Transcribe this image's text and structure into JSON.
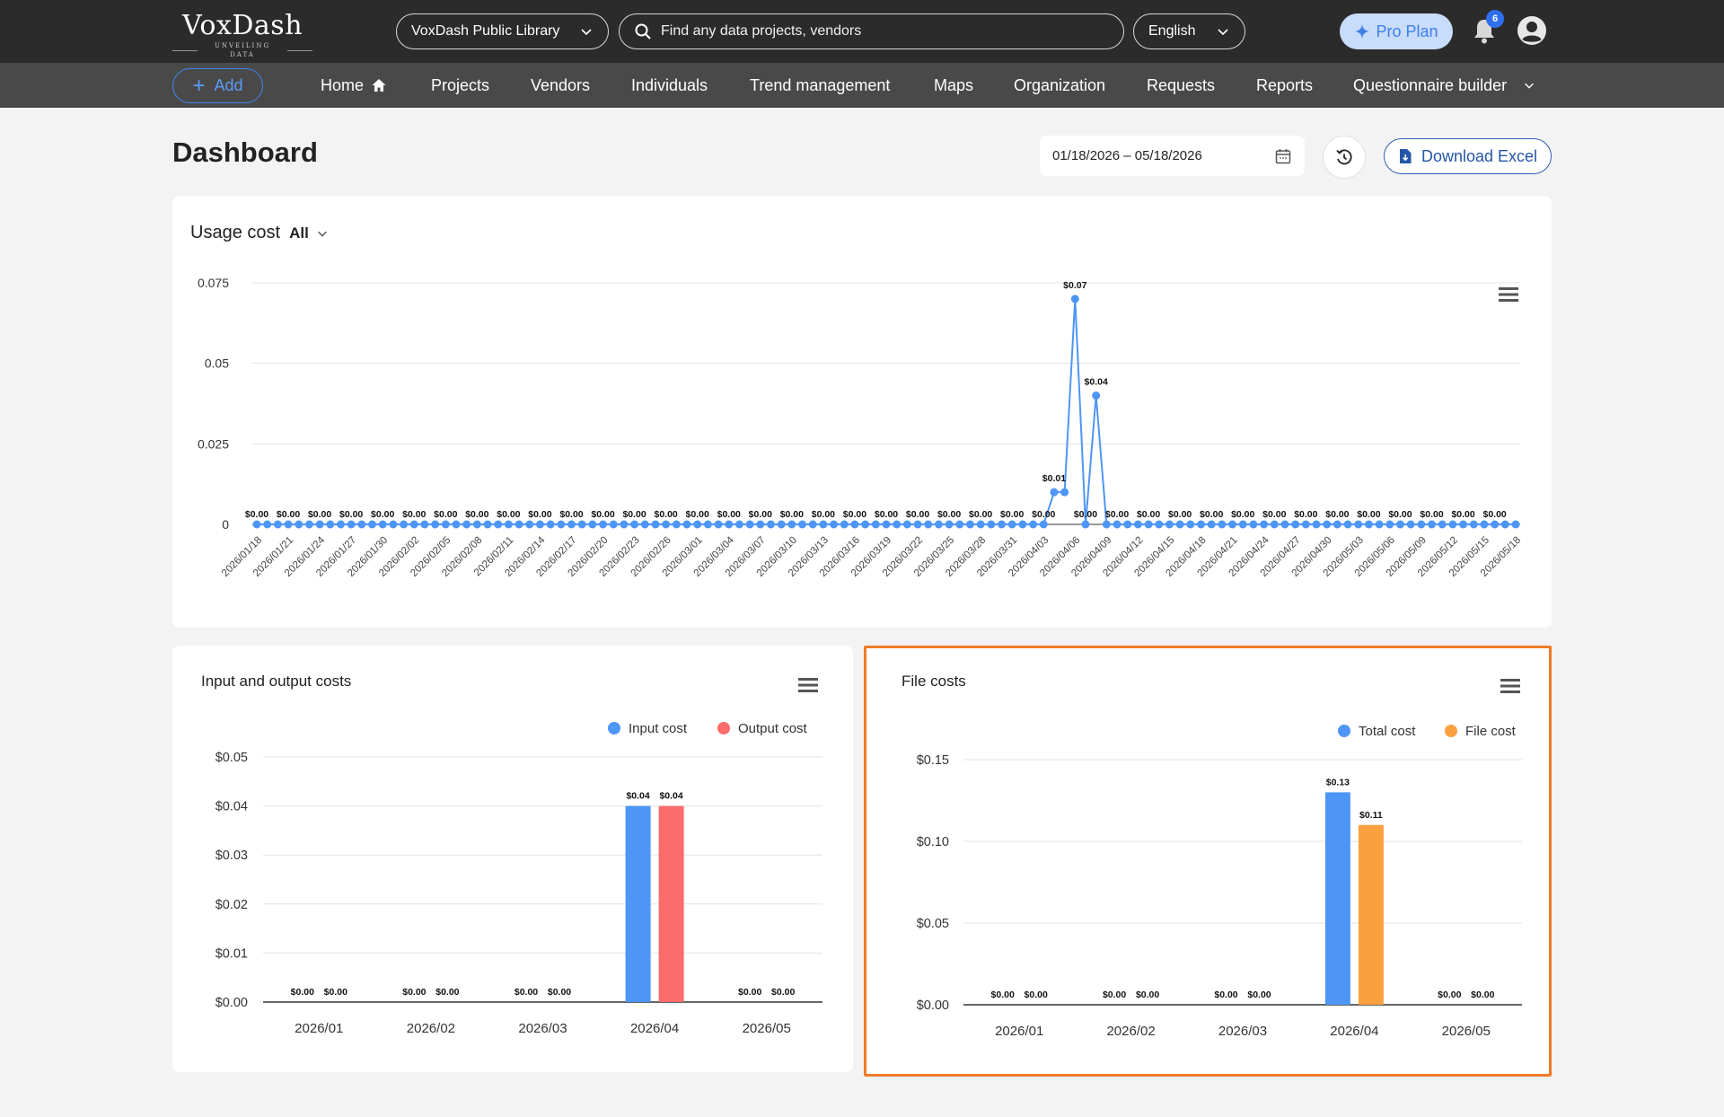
{
  "brand": {
    "name": "VoxDash",
    "tagline": "UNVEILING DATA"
  },
  "header": {
    "library": "VoxDash Public Library",
    "search_placeholder": "Find any data projects, vendors",
    "language": "English",
    "pro_plan": "Pro Plan",
    "notifications_count": "6"
  },
  "nav": {
    "add": "Add",
    "items": [
      "Home",
      "Projects",
      "Vendors",
      "Individuals",
      "Trend management",
      "Maps",
      "Organization",
      "Requests",
      "Reports",
      "Questionnaire builder"
    ]
  },
  "page": {
    "title": "Dashboard",
    "date_range": "01/18/2026 – 05/18/2026",
    "download": "Download Excel"
  },
  "usage_card": {
    "title": "Usage cost",
    "filter": "All"
  },
  "io_card": {
    "title": "Input and output costs"
  },
  "file_card": {
    "title": "File costs"
  },
  "colors": {
    "blue": "#4e96f5",
    "red": "#fb6c6c",
    "orange": "#fba03f",
    "highlight": "#f07b28"
  },
  "chart_data": [
    {
      "type": "line",
      "title": "Usage cost",
      "x": [
        "2026/01/18",
        "2026/01/19",
        "2026/01/20",
        "2026/01/21",
        "2026/01/22",
        "2026/01/23",
        "2026/01/24",
        "2026/01/25",
        "2026/01/26",
        "2026/01/27",
        "2026/01/28",
        "2026/01/29",
        "2026/01/30",
        "2026/01/31",
        "2026/02/01",
        "2026/02/02",
        "2026/02/03",
        "2026/02/04",
        "2026/02/05",
        "2026/02/06",
        "2026/02/07",
        "2026/02/08",
        "2026/02/09",
        "2026/02/10",
        "2026/02/11",
        "2026/02/12",
        "2026/02/13",
        "2026/02/14",
        "2026/02/15",
        "2026/02/16",
        "2026/02/17",
        "2026/02/18",
        "2026/02/19",
        "2026/02/20",
        "2026/02/21",
        "2026/02/22",
        "2026/02/23",
        "2026/02/24",
        "2026/02/25",
        "2026/02/26",
        "2026/02/27",
        "2026/02/28",
        "2026/03/01",
        "2026/03/02",
        "2026/03/03",
        "2026/03/04",
        "2026/03/05",
        "2026/03/06",
        "2026/03/07",
        "2026/03/08",
        "2026/03/09",
        "2026/03/10",
        "2026/03/11",
        "2026/03/12",
        "2026/03/13",
        "2026/03/14",
        "2026/03/15",
        "2026/03/16",
        "2026/03/17",
        "2026/03/18",
        "2026/03/19",
        "2026/03/20",
        "2026/03/21",
        "2026/03/22",
        "2026/03/23",
        "2026/03/24",
        "2026/03/25",
        "2026/03/26",
        "2026/03/27",
        "2026/03/28",
        "2026/03/29",
        "2026/03/30",
        "2026/03/31",
        "2026/04/01",
        "2026/04/02",
        "2026/04/03",
        "2026/04/04",
        "2026/04/05",
        "2026/04/06",
        "2026/04/07",
        "2026/04/08",
        "2026/04/09",
        "2026/04/10",
        "2026/04/11",
        "2026/04/12",
        "2026/04/13",
        "2026/04/14",
        "2026/04/15",
        "2026/04/16",
        "2026/04/17",
        "2026/04/18",
        "2026/04/19",
        "2026/04/20",
        "2026/04/21",
        "2026/04/22",
        "2026/04/23",
        "2026/04/24",
        "2026/04/25",
        "2026/04/26",
        "2026/04/27",
        "2026/04/28",
        "2026/04/29",
        "2026/04/30",
        "2026/05/01",
        "2026/05/02",
        "2026/05/03",
        "2026/05/04",
        "2026/05/05",
        "2026/05/06",
        "2026/05/07",
        "2026/05/08",
        "2026/05/09",
        "2026/05/10",
        "2026/05/11",
        "2026/05/12",
        "2026/05/13",
        "2026/05/14",
        "2026/05/15",
        "2026/05/16",
        "2026/05/17",
        "2026/05/18"
      ],
      "tick_labels": [
        "2026/01/18",
        "2026/01/21",
        "2026/01/24",
        "2026/01/27",
        "2026/01/30",
        "2026/02/02",
        "2026/02/05",
        "2026/02/08",
        "2026/02/11",
        "2026/02/14",
        "2026/02/17",
        "2026/02/20",
        "2026/02/23",
        "2026/02/26",
        "2026/03/01",
        "2026/03/04",
        "2026/03/07",
        "2026/03/10",
        "2026/03/13",
        "2026/03/16",
        "2026/03/19",
        "2026/03/22",
        "2026/03/25",
        "2026/03/28",
        "2026/03/31",
        "2026/04/03",
        "2026/04/06",
        "2026/04/09",
        "2026/04/12",
        "2026/04/15",
        "2026/04/18",
        "2026/04/21",
        "2026/04/24",
        "2026/04/27",
        "2026/04/30",
        "2026/05/03",
        "2026/05/06",
        "2026/05/09",
        "2026/05/12",
        "2026/05/15",
        "2026/05/18"
      ],
      "y_ticks": [
        "0",
        "0.025",
        "0.05",
        "0.075"
      ],
      "ylim": [
        0,
        0.075
      ],
      "nonzero": {
        "2026/04/04": 0.01,
        "2026/04/05": 0.01,
        "2026/04/06": 0.07,
        "2026/04/07": 0,
        "2026/04/08": 0.04
      },
      "point_labels": [
        {
          "x": "2026/01/18",
          "text": "$0.00"
        },
        {
          "x": "2026/01/21",
          "text": "$0.00"
        },
        {
          "x": "2026/01/24",
          "text": "$0.00"
        },
        {
          "x": "2026/01/27",
          "text": "$0.00"
        },
        {
          "x": "2026/01/30",
          "text": "$0.00"
        },
        {
          "x": "2026/02/02",
          "text": "$0.00"
        },
        {
          "x": "2026/02/05",
          "text": "$0.00"
        },
        {
          "x": "2026/02/08",
          "text": "$0.00"
        },
        {
          "x": "2026/02/11",
          "text": "$0.00"
        },
        {
          "x": "2026/02/14",
          "text": "$0.00"
        },
        {
          "x": "2026/02/17",
          "text": "$0.00"
        },
        {
          "x": "2026/02/20",
          "text": "$0.00"
        },
        {
          "x": "2026/02/23",
          "text": "$0.00"
        },
        {
          "x": "2026/02/26",
          "text": "$0.00"
        },
        {
          "x": "2026/03/01",
          "text": "$0.00"
        },
        {
          "x": "2026/03/04",
          "text": "$0.00"
        },
        {
          "x": "2026/03/07",
          "text": "$0.00"
        },
        {
          "x": "2026/03/10",
          "text": "$0.00"
        },
        {
          "x": "2026/03/13",
          "text": "$0.00"
        },
        {
          "x": "2026/03/16",
          "text": "$0.00"
        },
        {
          "x": "2026/03/19",
          "text": "$0.00"
        },
        {
          "x": "2026/03/22",
          "text": "$0.00"
        },
        {
          "x": "2026/03/25",
          "text": "$0.00"
        },
        {
          "x": "2026/03/28",
          "text": "$0.00"
        },
        {
          "x": "2026/03/31",
          "text": "$0.00"
        },
        {
          "x": "2026/04/03",
          "text": "$0.00"
        },
        {
          "x": "2026/04/04",
          "text": "$0.01"
        },
        {
          "x": "2026/04/06",
          "text": "$0.07"
        },
        {
          "x": "2026/04/07",
          "text": "$0.00"
        },
        {
          "x": "2026/04/08",
          "text": "$0.04"
        },
        {
          "x": "2026/04/10",
          "text": "$0.00"
        },
        {
          "x": "2026/04/13",
          "text": "$0.00"
        },
        {
          "x": "2026/04/16",
          "text": "$0.00"
        },
        {
          "x": "2026/04/19",
          "text": "$0.00"
        },
        {
          "x": "2026/04/22",
          "text": "$0.00"
        },
        {
          "x": "2026/04/25",
          "text": "$0.00"
        },
        {
          "x": "2026/04/28",
          "text": "$0.00"
        },
        {
          "x": "2026/05/01",
          "text": "$0.00"
        },
        {
          "x": "2026/05/04",
          "text": "$0.00"
        },
        {
          "x": "2026/05/07",
          "text": "$0.00"
        },
        {
          "x": "2026/05/10",
          "text": "$0.00"
        },
        {
          "x": "2026/05/13",
          "text": "$0.00"
        },
        {
          "x": "2026/05/16",
          "text": "$0.00"
        }
      ],
      "grid": true
    },
    {
      "type": "bar",
      "title": "Input and output costs",
      "categories": [
        "2026/01",
        "2026/02",
        "2026/03",
        "2026/04",
        "2026/05"
      ],
      "series": [
        {
          "name": "Input cost",
          "values": [
            0,
            0,
            0,
            0.04,
            0
          ],
          "labels": [
            "$0.00",
            "$0.00",
            "$0.00",
            "$0.04",
            "$0.00"
          ],
          "color": "#4e96f5"
        },
        {
          "name": "Output cost",
          "values": [
            0,
            0,
            0,
            0.04,
            0
          ],
          "labels": [
            "$0.00",
            "$0.00",
            "$0.00",
            "$0.04",
            "$0.00"
          ],
          "color": "#fb6c6c"
        }
      ],
      "y_ticks": [
        "$0.00",
        "$0.01",
        "$0.02",
        "$0.03",
        "$0.04",
        "$0.05"
      ],
      "ylim": [
        0,
        0.05
      ],
      "legend": "top-right",
      "grid": true
    },
    {
      "type": "bar",
      "title": "File costs",
      "categories": [
        "2026/01",
        "2026/02",
        "2026/03",
        "2026/04",
        "2026/05"
      ],
      "series": [
        {
          "name": "Total cost",
          "values": [
            0,
            0,
            0,
            0.13,
            0
          ],
          "labels": [
            "$0.00",
            "$0.00",
            "$0.00",
            "$0.13",
            "$0.00"
          ],
          "color": "#4e96f5"
        },
        {
          "name": "File cost",
          "values": [
            0,
            0,
            0,
            0.11,
            0
          ],
          "labels": [
            "$0.00",
            "$0.00",
            "$0.00",
            "$0.11",
            "$0.00"
          ],
          "color": "#fba03f"
        }
      ],
      "y_ticks": [
        "$0.00",
        "$0.05",
        "$0.10",
        "$0.15"
      ],
      "ylim": [
        0,
        0.15
      ],
      "legend": "top-right",
      "grid": true
    }
  ]
}
